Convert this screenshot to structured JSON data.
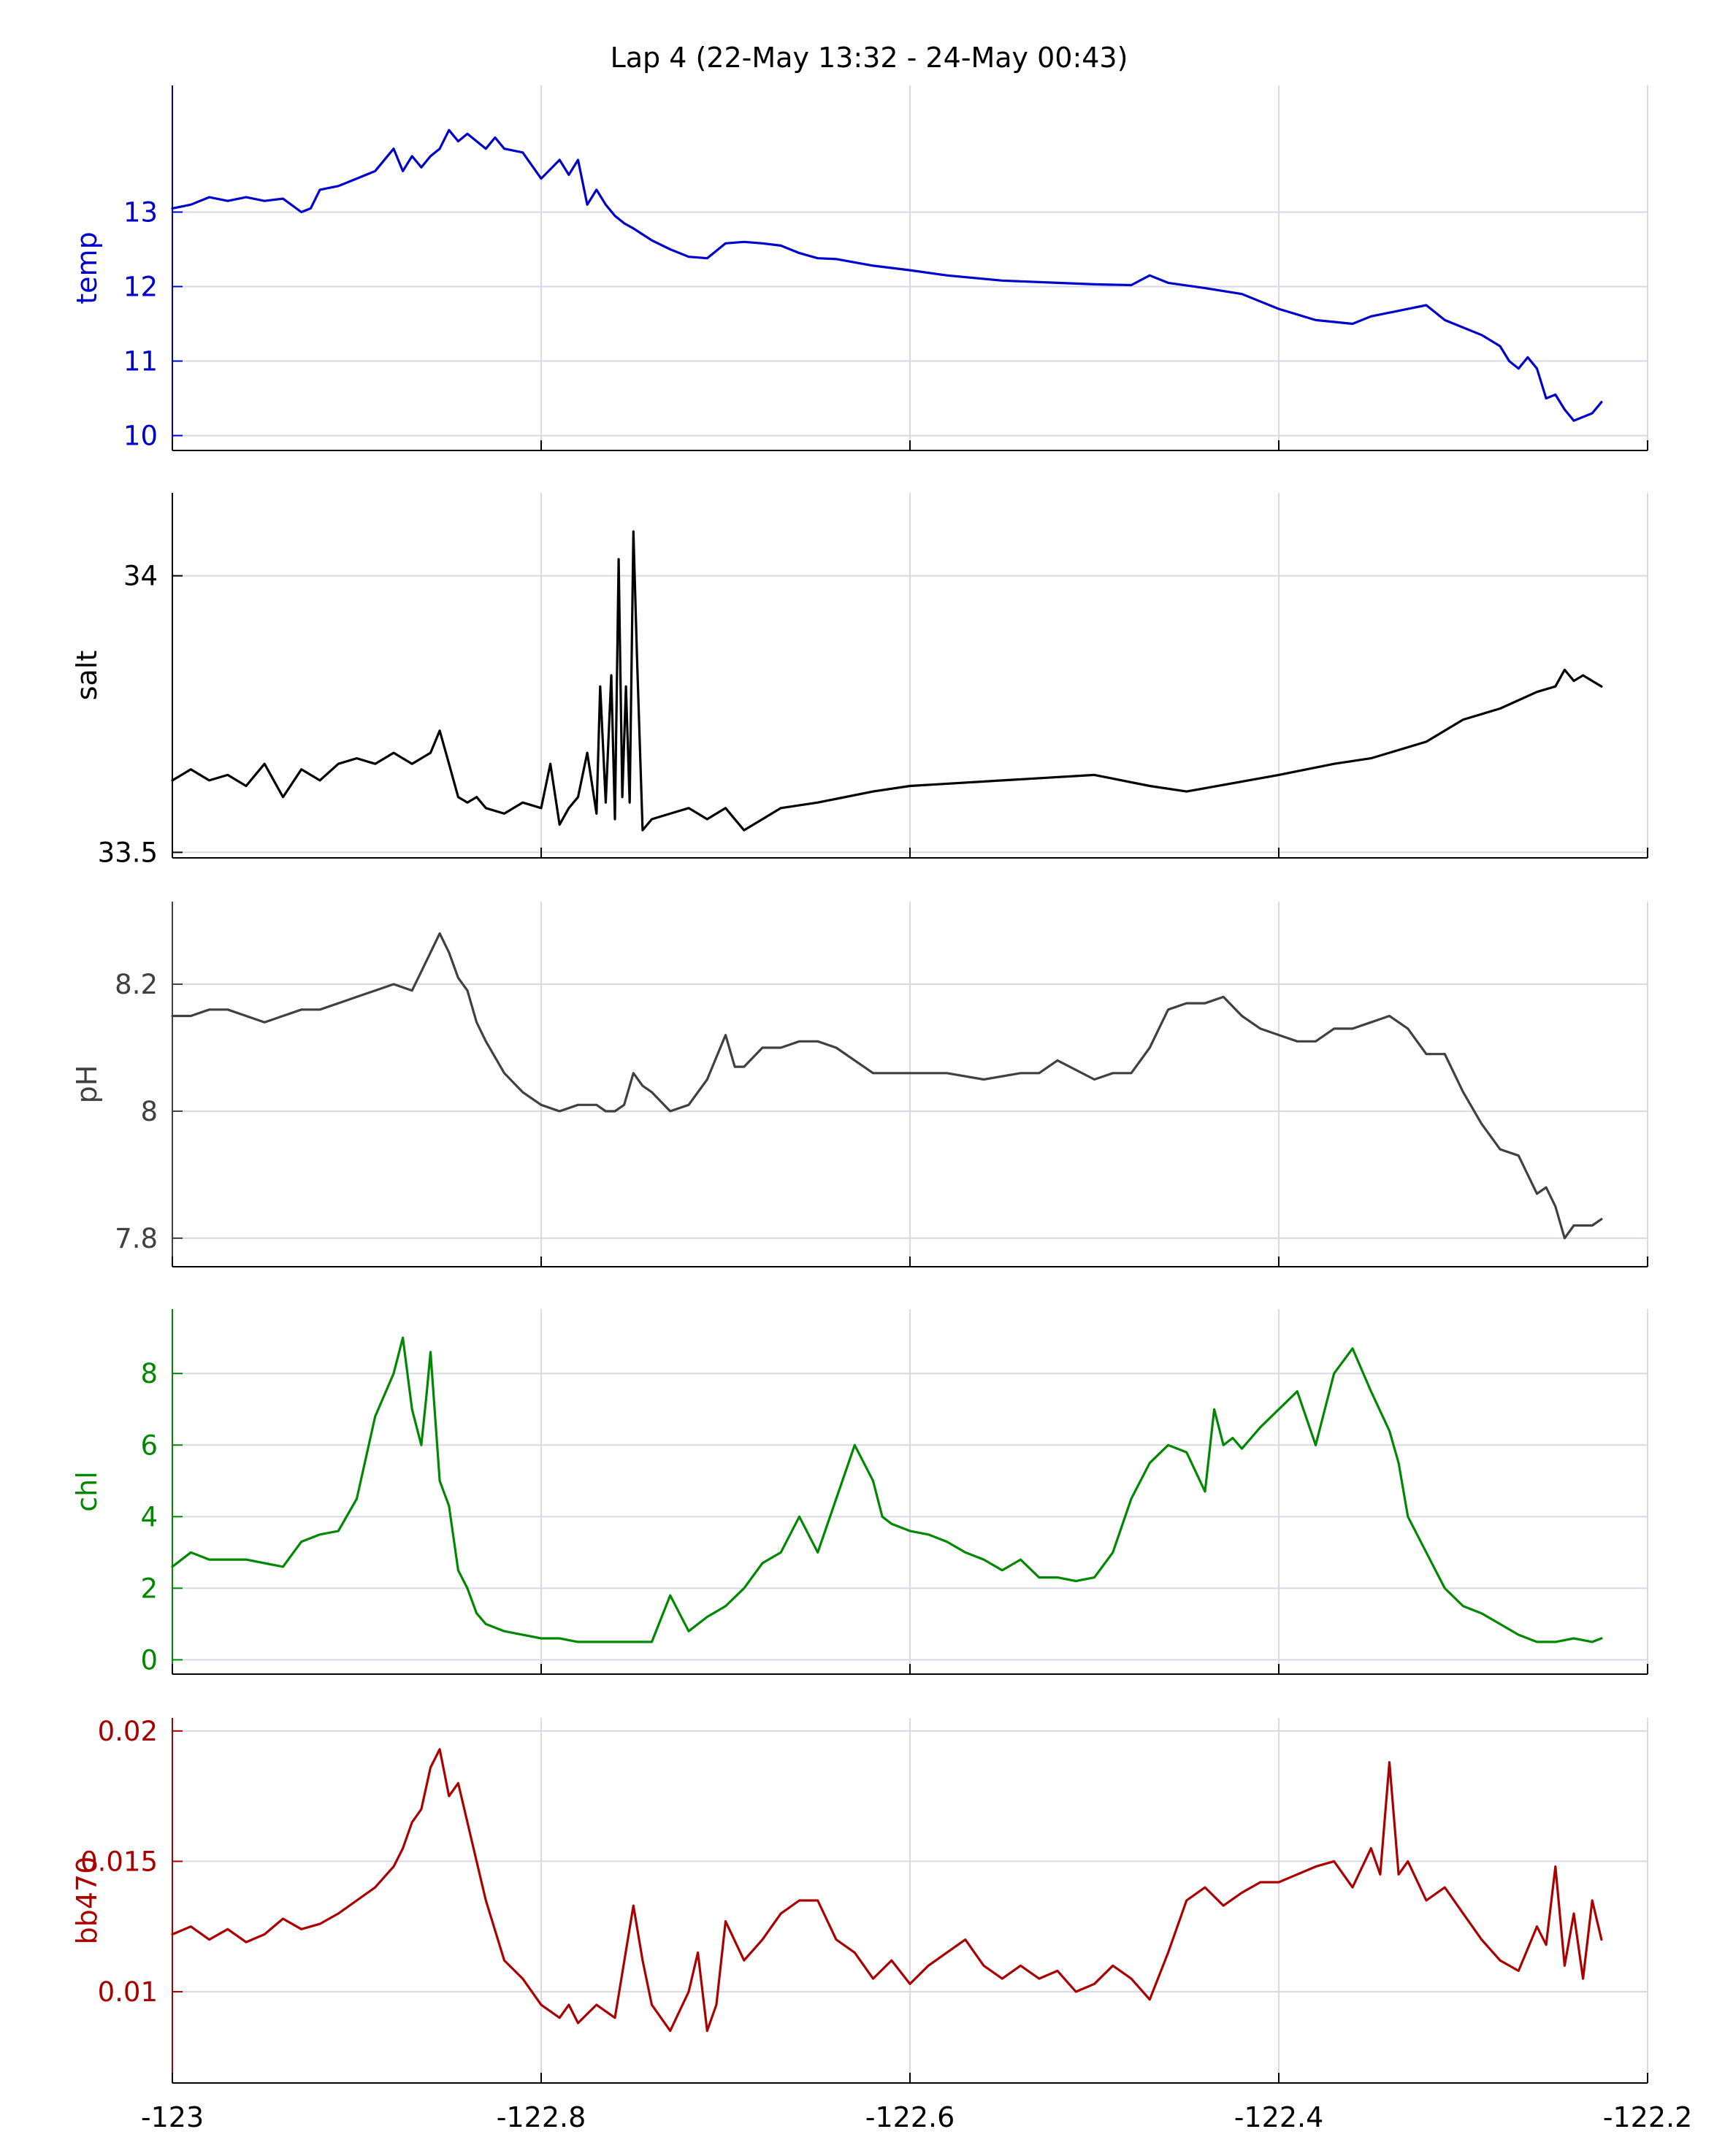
{
  "figure": {
    "title": "Lap 4 (22-May 13:32 - 24-May 00:43)",
    "x_tick_labels": [
      "-123",
      "-122.8",
      "-122.6",
      "-122.4",
      "-122.2"
    ]
  },
  "chart_data": [
    {
      "type": "line",
      "ylabel": "temp",
      "color": "#0000cc",
      "xlim": [
        -123,
        -122.2
      ],
      "ylim": [
        9.8,
        14.7
      ],
      "yticks": [
        10,
        11,
        12,
        13
      ],
      "ytick_labels": [
        "10",
        "11",
        "12",
        "13"
      ],
      "grid": true,
      "x": [
        -123.0,
        -122.99,
        -122.98,
        -122.97,
        -122.96,
        -122.95,
        -122.94,
        -122.93,
        -122.925,
        -122.92,
        -122.91,
        -122.9,
        -122.89,
        -122.88,
        -122.875,
        -122.87,
        -122.865,
        -122.86,
        -122.855,
        -122.85,
        -122.845,
        -122.84,
        -122.83,
        -122.825,
        -122.82,
        -122.81,
        -122.8,
        -122.79,
        -122.785,
        -122.78,
        -122.775,
        -122.77,
        -122.765,
        -122.76,
        -122.755,
        -122.75,
        -122.74,
        -122.73,
        -122.72,
        -122.71,
        -122.7,
        -122.69,
        -122.68,
        -122.67,
        -122.66,
        -122.65,
        -122.64,
        -122.62,
        -122.6,
        -122.58,
        -122.55,
        -122.52,
        -122.5,
        -122.48,
        -122.47,
        -122.46,
        -122.44,
        -122.42,
        -122.4,
        -122.38,
        -122.36,
        -122.35,
        -122.34,
        -122.33,
        -122.32,
        -122.31,
        -122.3,
        -122.29,
        -122.28,
        -122.275,
        -122.27,
        -122.265,
        -122.26,
        -122.255,
        -122.25,
        -122.245,
        -122.24,
        -122.235,
        -122.23,
        -122.225
      ],
      "y": [
        13.05,
        13.1,
        13.2,
        13.15,
        13.2,
        13.15,
        13.18,
        13.0,
        13.05,
        13.3,
        13.35,
        13.45,
        13.55,
        13.85,
        13.55,
        13.75,
        13.6,
        13.75,
        13.85,
        14.1,
        13.95,
        14.05,
        13.85,
        14.0,
        13.85,
        13.8,
        13.45,
        13.7,
        13.5,
        13.7,
        13.1,
        13.3,
        13.1,
        12.95,
        12.85,
        12.78,
        12.62,
        12.5,
        12.4,
        12.38,
        12.58,
        12.6,
        12.58,
        12.55,
        12.45,
        12.38,
        12.37,
        12.28,
        12.22,
        12.15,
        12.08,
        12.05,
        12.03,
        12.02,
        12.15,
        12.05,
        11.98,
        11.9,
        11.7,
        11.55,
        11.5,
        11.6,
        11.65,
        11.7,
        11.75,
        11.55,
        11.45,
        11.35,
        11.2,
        11.0,
        10.9,
        11.05,
        10.9,
        10.5,
        10.55,
        10.35,
        10.2,
        10.25,
        10.3,
        10.45
      ]
    },
    {
      "type": "line",
      "ylabel": "salt",
      "color": "#000000",
      "xlim": [
        -123,
        -122.2
      ],
      "ylim": [
        33.49,
        34.15
      ],
      "yticks": [
        33.5,
        34
      ],
      "ytick_labels": [
        "33.5",
        "34"
      ],
      "grid": true,
      "x": [
        -123.0,
        -122.99,
        -122.98,
        -122.97,
        -122.96,
        -122.95,
        -122.94,
        -122.93,
        -122.92,
        -122.91,
        -122.9,
        -122.89,
        -122.88,
        -122.87,
        -122.86,
        -122.855,
        -122.85,
        -122.845,
        -122.84,
        -122.835,
        -122.83,
        -122.82,
        -122.815,
        -122.81,
        -122.8,
        -122.795,
        -122.79,
        -122.785,
        -122.78,
        -122.775,
        -122.77,
        -122.768,
        -122.765,
        -122.762,
        -122.76,
        -122.758,
        -122.756,
        -122.754,
        -122.752,
        -122.75,
        -122.748,
        -122.745,
        -122.74,
        -122.73,
        -122.72,
        -122.71,
        -122.7,
        -122.69,
        -122.68,
        -122.67,
        -122.65,
        -122.62,
        -122.6,
        -122.55,
        -122.5,
        -122.47,
        -122.45,
        -122.4,
        -122.37,
        -122.35,
        -122.32,
        -122.3,
        -122.28,
        -122.26,
        -122.25,
        -122.245,
        -122.24,
        -122.235,
        -122.23,
        -122.225
      ],
      "y": [
        33.63,
        33.65,
        33.63,
        33.64,
        33.62,
        33.66,
        33.6,
        33.65,
        33.63,
        33.66,
        33.67,
        33.66,
        33.68,
        33.66,
        33.68,
        33.72,
        33.66,
        33.6,
        33.59,
        33.6,
        33.58,
        33.57,
        33.58,
        33.59,
        33.58,
        33.66,
        33.55,
        33.58,
        33.6,
        33.68,
        33.57,
        33.8,
        33.59,
        33.82,
        33.56,
        34.03,
        33.6,
        33.8,
        33.59,
        34.08,
        33.85,
        33.54,
        33.56,
        33.57,
        33.58,
        33.56,
        33.58,
        33.54,
        33.56,
        33.58,
        33.59,
        33.61,
        33.62,
        33.63,
        33.64,
        33.62,
        33.61,
        33.64,
        33.66,
        33.67,
        33.7,
        33.74,
        33.76,
        33.79,
        33.8,
        33.83,
        33.81,
        33.82,
        33.81,
        33.8
      ]
    },
    {
      "type": "line",
      "ylabel": "pH",
      "color": "#404040",
      "xlim": [
        -123,
        -122.2
      ],
      "ylim": [
        7.755,
        8.33
      ],
      "yticks": [
        7.8,
        8,
        8.2
      ],
      "ytick_labels": [
        "7.8",
        "8",
        "8.2"
      ],
      "grid": true,
      "x": [
        -123.0,
        -122.99,
        -122.98,
        -122.97,
        -122.96,
        -122.95,
        -122.94,
        -122.93,
        -122.92,
        -122.91,
        -122.9,
        -122.89,
        -122.88,
        -122.87,
        -122.865,
        -122.86,
        -122.855,
        -122.85,
        -122.845,
        -122.84,
        -122.835,
        -122.83,
        -122.82,
        -122.81,
        -122.8,
        -122.79,
        -122.78,
        -122.77,
        -122.765,
        -122.76,
        -122.755,
        -122.75,
        -122.745,
        -122.74,
        -122.73,
        -122.72,
        -122.71,
        -122.7,
        -122.695,
        -122.69,
        -122.68,
        -122.67,
        -122.66,
        -122.65,
        -122.64,
        -122.63,
        -122.62,
        -122.6,
        -122.58,
        -122.56,
        -122.54,
        -122.53,
        -122.52,
        -122.5,
        -122.49,
        -122.48,
        -122.47,
        -122.46,
        -122.45,
        -122.44,
        -122.43,
        -122.42,
        -122.41,
        -122.4,
        -122.39,
        -122.38,
        -122.37,
        -122.36,
        -122.35,
        -122.34,
        -122.33,
        -122.32,
        -122.31,
        -122.3,
        -122.29,
        -122.28,
        -122.27,
        -122.265,
        -122.26,
        -122.255,
        -122.25,
        -122.245,
        -122.24,
        -122.23,
        -122.225
      ],
      "y": [
        8.15,
        8.15,
        8.16,
        8.16,
        8.15,
        8.14,
        8.15,
        8.16,
        8.16,
        8.17,
        8.18,
        8.19,
        8.2,
        8.19,
        8.22,
        8.25,
        8.28,
        8.25,
        8.21,
        8.19,
        8.14,
        8.11,
        8.06,
        8.03,
        8.01,
        8.0,
        8.01,
        8.01,
        8.0,
        8.0,
        8.01,
        8.06,
        8.04,
        8.03,
        8.0,
        8.01,
        8.05,
        8.12,
        8.07,
        8.07,
        8.1,
        8.1,
        8.11,
        8.11,
        8.1,
        8.08,
        8.06,
        8.06,
        8.06,
        8.05,
        8.06,
        8.06,
        8.08,
        8.05,
        8.06,
        8.06,
        8.1,
        8.16,
        8.17,
        8.17,
        8.18,
        8.15,
        8.13,
        8.12,
        8.11,
        8.11,
        8.13,
        8.13,
        8.14,
        8.15,
        8.13,
        8.09,
        8.09,
        8.03,
        7.98,
        7.94,
        7.93,
        7.9,
        7.87,
        7.88,
        7.85,
        7.8,
        7.82,
        7.82,
        7.83
      ]
    },
    {
      "type": "line",
      "ylabel": "chl",
      "color": "#008800",
      "xlim": [
        -123,
        -122.2
      ],
      "ylim": [
        -0.4,
        9.8
      ],
      "yticks": [
        0,
        2,
        4,
        6,
        8
      ],
      "ytick_labels": [
        "0",
        "2",
        "4",
        "6",
        "8"
      ],
      "grid": true,
      "x": [
        -123.0,
        -122.99,
        -122.98,
        -122.97,
        -122.96,
        -122.95,
        -122.94,
        -122.93,
        -122.92,
        -122.91,
        -122.9,
        -122.89,
        -122.88,
        -122.875,
        -122.87,
        -122.865,
        -122.862,
        -122.86,
        -122.855,
        -122.85,
        -122.845,
        -122.84,
        -122.835,
        -122.83,
        -122.82,
        -122.81,
        -122.8,
        -122.79,
        -122.78,
        -122.77,
        -122.76,
        -122.75,
        -122.74,
        -122.73,
        -122.72,
        -122.71,
        -122.7,
        -122.69,
        -122.68,
        -122.67,
        -122.66,
        -122.65,
        -122.64,
        -122.63,
        -122.62,
        -122.615,
        -122.61,
        -122.6,
        -122.59,
        -122.58,
        -122.57,
        -122.56,
        -122.55,
        -122.54,
        -122.53,
        -122.52,
        -122.51,
        -122.5,
        -122.49,
        -122.48,
        -122.47,
        -122.46,
        -122.45,
        -122.44,
        -122.435,
        -122.43,
        -122.425,
        -122.42,
        -122.41,
        -122.4,
        -122.39,
        -122.38,
        -122.37,
        -122.36,
        -122.35,
        -122.34,
        -122.335,
        -122.33,
        -122.32,
        -122.31,
        -122.3,
        -122.29,
        -122.28,
        -122.27,
        -122.26,
        -122.25,
        -122.24,
        -122.23,
        -122.225
      ],
      "y": [
        2.6,
        3.0,
        2.8,
        2.8,
        2.8,
        2.7,
        2.6,
        3.3,
        3.5,
        3.6,
        4.5,
        6.8,
        8.0,
        9.0,
        7.0,
        6.0,
        7.5,
        8.6,
        5.0,
        4.3,
        2.5,
        2.0,
        1.3,
        1.0,
        0.8,
        0.7,
        0.6,
        0.6,
        0.5,
        0.5,
        0.5,
        0.5,
        0.5,
        1.8,
        0.8,
        1.2,
        1.5,
        2.0,
        2.7,
        3.0,
        4.0,
        3.0,
        4.5,
        6.0,
        5.0,
        4.0,
        3.8,
        3.6,
        3.5,
        3.3,
        3.0,
        2.8,
        2.5,
        2.8,
        2.3,
        2.3,
        2.2,
        2.3,
        3.0,
        4.5,
        5.5,
        6.0,
        5.8,
        4.7,
        7.0,
        6.0,
        6.2,
        5.9,
        6.5,
        7.0,
        7.5,
        6.0,
        8.0,
        8.7,
        7.5,
        6.4,
        5.5,
        4.0,
        3.0,
        2.0,
        1.5,
        1.3,
        1.0,
        0.7,
        0.5,
        0.5,
        0.6,
        0.5,
        0.6
      ]
    },
    {
      "type": "line",
      "ylabel": "bb470",
      "color": "#aa0000",
      "xlim": [
        -123,
        -122.2
      ],
      "ylim": [
        0.0065,
        0.0205
      ],
      "yticks": [
        0.01,
        0.015,
        0.02
      ],
      "ytick_labels": [
        "0.01",
        "0.015",
        "0.02"
      ],
      "grid": true,
      "x": [
        -123.0,
        -122.99,
        -122.98,
        -122.97,
        -122.96,
        -122.95,
        -122.94,
        -122.93,
        -122.92,
        -122.91,
        -122.9,
        -122.89,
        -122.88,
        -122.875,
        -122.87,
        -122.865,
        -122.86,
        -122.855,
        -122.85,
        -122.845,
        -122.84,
        -122.835,
        -122.83,
        -122.82,
        -122.81,
        -122.8,
        -122.79,
        -122.785,
        -122.78,
        -122.77,
        -122.76,
        -122.75,
        -122.745,
        -122.74,
        -122.73,
        -122.72,
        -122.715,
        -122.71,
        -122.705,
        -122.7,
        -122.69,
        -122.68,
        -122.67,
        -122.66,
        -122.65,
        -122.64,
        -122.63,
        -122.62,
        -122.61,
        -122.6,
        -122.59,
        -122.58,
        -122.57,
        -122.56,
        -122.55,
        -122.54,
        -122.53,
        -122.52,
        -122.51,
        -122.5,
        -122.49,
        -122.48,
        -122.47,
        -122.46,
        -122.45,
        -122.44,
        -122.43,
        -122.42,
        -122.41,
        -122.4,
        -122.39,
        -122.38,
        -122.37,
        -122.36,
        -122.35,
        -122.345,
        -122.34,
        -122.335,
        -122.33,
        -122.32,
        -122.31,
        -122.3,
        -122.29,
        -122.28,
        -122.27,
        -122.26,
        -122.255,
        -122.25,
        -122.245,
        -122.24,
        -122.235,
        -122.23,
        -122.225
      ],
      "y": [
        0.0122,
        0.0125,
        0.012,
        0.0124,
        0.0119,
        0.0122,
        0.0128,
        0.0124,
        0.0126,
        0.013,
        0.0135,
        0.014,
        0.0148,
        0.0155,
        0.0165,
        0.017,
        0.0186,
        0.0193,
        0.0175,
        0.018,
        0.0165,
        0.015,
        0.0135,
        0.0112,
        0.0105,
        0.0095,
        0.009,
        0.0095,
        0.0088,
        0.0095,
        0.009,
        0.0133,
        0.0112,
        0.0095,
        0.0085,
        0.01,
        0.0115,
        0.0085,
        0.0095,
        0.0127,
        0.0112,
        0.012,
        0.013,
        0.0135,
        0.0135,
        0.012,
        0.0115,
        0.0105,
        0.0112,
        0.0103,
        0.011,
        0.0115,
        0.012,
        0.011,
        0.0105,
        0.011,
        0.0105,
        0.0108,
        0.01,
        0.0103,
        0.011,
        0.0105,
        0.0097,
        0.0115,
        0.0135,
        0.014,
        0.0133,
        0.0138,
        0.0142,
        0.0142,
        0.0145,
        0.0148,
        0.015,
        0.014,
        0.0155,
        0.0145,
        0.0188,
        0.0145,
        0.015,
        0.0135,
        0.014,
        0.013,
        0.012,
        0.0112,
        0.0108,
        0.0125,
        0.0118,
        0.0148,
        0.011,
        0.013,
        0.0105,
        0.0135,
        0.012
      ]
    }
  ]
}
